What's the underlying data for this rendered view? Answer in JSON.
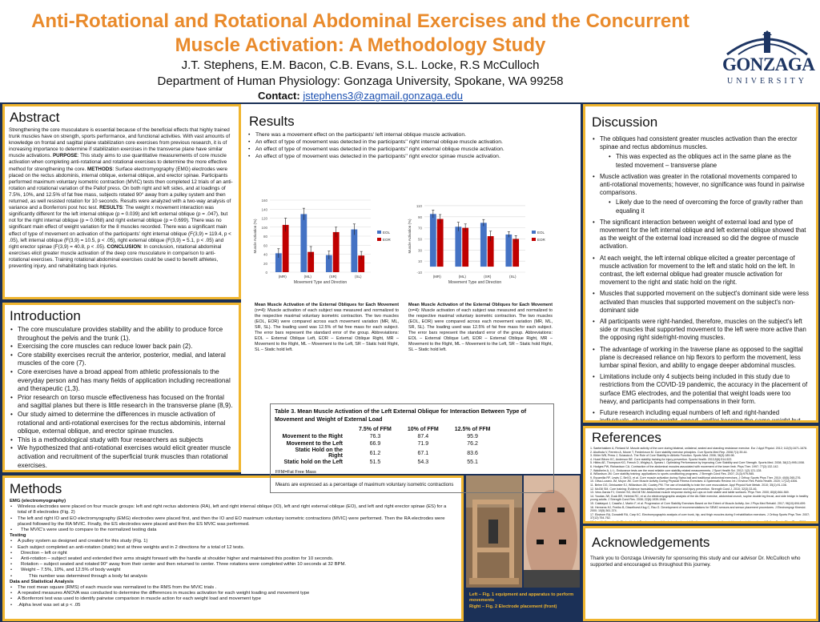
{
  "header": {
    "title": "Anti-Rotational and Rotational Abdominal Exercises and the Concurrent Muscle Activation: A Methodology Study",
    "authors": "J.T. Stephens, E.M. Bacon, C.B. Evans, S.L. Locke, R.S McCulloch",
    "department": "Department of Human Physiology: Gonzaga University, Spokane, WA 99258",
    "contact_label": "Contact:",
    "contact_email": "jstephens3@zagmail.gonzaga.edu",
    "logo_name": "GONZAGA",
    "logo_sub": "UNIVERSITY"
  },
  "abstract": {
    "heading": "Abstract",
    "p1": "Strengthening the core musculature is essential because of the beneficial effects that highly trained trunk muscles have on strength, sports performance, and functional activities. With vast amounts of knowledge on frontal and sagittal plane stabilization core exercises from previous research, it is of increasing importance to determine if stabilization exercises in the transverse plane have similar muscle activations.",
    "purpose_label": "PURPOSE",
    "p2": ": This study aims to use quantitative measurements of core muscle activation when completing anti-rotational and rotational exercises to determine the more effective method for strengthening the core.",
    "methods_label": "METHODS",
    "p3": ": Surface electromyography (EMG) electrodes were placed on the rectus abdominis, internal oblique, external oblique, and erector spinae. Participants performed maximum voluntary isometric contraction (MVIC) tests then completed 12 trials of an anti-rotation and rotational variation of the Pallof press. On both right and left sides, and at loadings of 7.5%, 10%, and 12.5% of fat free mass, subjects rotated 90° away from a pulley system and then returned, as well resisted rotation for 10 seconds. Results were analyzed with a two-way analysis of variance and a Bonferroni post hoc test.",
    "results_label": "RESULTS",
    "p4": ": The weight x movement interaction was significantly different for the left internal oblique (p = 0.039) and left external oblique (p = .047), but not for the right internal oblique (p = 0.068) and right external oblique (p = 0.699). There was no significant main effect of weight variation for the 8 muscles recorded. There was a significant main effect of type of movement on activation of the participants' right internal oblique (F(3,9) = 119.4, p < .05), left internal oblique (F(3,9) = 10.5, p < .05), right external oblique (F(3,9) = 5.1, p < .05) and right erector spinae (F(3,9) = 40.8, p < .05).",
    "conclusion_label": "CONCLUSION",
    "p5": ": In conclusion, rotational abdominal exercises elicit greater muscle activation of the deep core musculature in comparison to anti-rotational exercises. Training rotational abdominal exercises could be used to benefit athletes, preventing injury, and rehabilitating back injuries."
  },
  "introduction": {
    "heading": "Introduction",
    "items": [
      "The core musculature provides stability and the ability to produce force throughout the pelvis and the trunk (1).",
      "Exercising the core muscles can reduce lower back pain (2).",
      "Core stability exercises recruit the anterior, posterior, medial, and lateral muscles of the core (7).",
      "Core exercises have a broad appeal from athletic professionals to the everyday person and has many fields of application including recreational and therapeutic (1,3).",
      "Prior research on torso muscle effectiveness has focused on the frontal and sagittal planes but there is little research in the transverse plane (8,9).",
      "Our study aimed to determine the differences in muscle activation of rotational and anti-rotational exercises for the rectus abdominis, internal oblique, external oblique, and erector spinae muscles.",
      "This is a methodological study with four researchers as subjects",
      "We hypothesized that anti-rotational exercises would elicit greater muscle activation and recruitment of the superficial trunk muscles than rotational exercises."
    ]
  },
  "methods": {
    "heading": "Methods",
    "emg_heading": "EMG (electromyography)",
    "emg_items": [
      "Wireless electrodes were placed on four muscle groups: left and right rectus abdominis (RA), left and right internal oblique (IO), left and right external oblique (EO), and left and right erector spinae (ES) for a total of 8 electrodes (Fig. 2)",
      "The left and right IO and EO electromyography (EMG) electrodes were placed first, and then the IO and EO maximum voluntary isometric contractions (MVIC) were performed. Then the RA electrodes were placed followed by the RA MVIC. Finally, the ES electrodes were placed and then the ES MVIC was performed."
    ],
    "emg_sub": "The MVIC's were used to compare to the normalized testing data",
    "testing_heading": "Testing",
    "testing_items": [
      "A pulley system as designed and created for this study (Fig. 1)",
      "Each subject completed an anti-rotation (static) test at three weights and in 2 directions for a total of 12 tests."
    ],
    "testing_sub": [
      "Direction – left or right",
      "Anti-rotation – subject seated and extended their arms straight forward with the handle at shoulder higher and maintained this position for 10 seconds.",
      "Rotation – subject seated and rotated 90° away from their center and then returned to center. Three rotations were completed within 10 seconds at 32 BPM.",
      "Weight – 7.5%, 10%, and 12.5% of body weight"
    ],
    "testing_sub2": "This number was determined through a body fat analysis",
    "analysis_heading": "Data and Statistical Analysis",
    "analysis_items": [
      "The root mean square (RMS) of each muscle was normalized to the RMS from the MVIC trials .",
      "A repeated measures ANOVA was conducted to determine the differences in muscles activation for each weight loading and movement type",
      "A Bonferroni test was used to identify pairwise comparison in muscle action for each weight load and movement type",
      ".Alpha level was set at p < .05"
    ]
  },
  "photo": {
    "caption_line1": "Left – Fig. 1 equipment and apparatus to perform movements",
    "caption_line2": "Right – Fig. 2 Electrode placement (front)"
  },
  "results": {
    "heading": "Results",
    "items": [
      "There was a movement effect on the participants' left internal oblique muscle activation.",
      "An effect of type of movement was detected in the participants'' right internal oblique muscle activation.",
      "An effect of type of movement was detected in the participants'' right external oblique muscle activation.",
      "An effect of type of movement was detected in the participants'' right  erector spinae muscle activation."
    ],
    "caption_left_title": "Mean Muscle Activation of the External Obliques for Each Movement",
    "caption_left": "(n=4): Muscle activation of each subject was measured and normalized to the respective maximal voluntary isometric contraction. The two muscles (EOL, EOR) were compared across each movement variation (MR, ML, SR, SL). The loading used was 12.5% of fat free mass for each subject. The error bars represent the standard error of the group. Abbreviations: EOL – External Oblique Left, EOR – External Oblique Right, MR – Movement to the Right, ML – Movement to the Left, SR – Static hold Right, SL – Static hold left.",
    "caption_right_title": "Mean Muscle Activation of the External Obliques for Each Movement",
    "caption_right": "(n=4): Muscle activation of each subject was measured and normalized to the respective maximal voluntary isometric contraction. The two muscles (EOL, EOR) were compared across each movement variation (MR, ML, SR, SL). The loading used was 12.5% of fat free mass for each subject. The error bars represent the standard error of the group. Abbreviations: EOL – External Oblique Left, EOR – External Oblique Right, MR – Movement to the Right, ML – Movement to the Left, SR – Static hold Right, SL – Static hold left.",
    "table": {
      "title": "Table 3. Mean Muscle Activation of the Left External Oblique for Interaction Between Type of Movement and Weight of External Load",
      "columns": [
        "",
        "7.5% of FFM",
        "10% of FFM",
        "12.5% of FFM"
      ],
      "rows": [
        [
          "Movement to the Right",
          "76.3",
          "87.4",
          "95.9"
        ],
        [
          "Movement to the Left",
          "66.9",
          "71.9",
          "76.2"
        ],
        [
          "Static Hold on the Right",
          "61.2",
          "67.1",
          "83.6"
        ],
        [
          "Static hold on the Left",
          "51.5",
          "54.3",
          "55.1"
        ]
      ],
      "footnote": "FFM=Fat Free Mass",
      "note": "Means are expressed as a percentage of maximum voluntary isometric contractions"
    }
  },
  "discussion": {
    "heading": "Discussion",
    "items": [
      {
        "text": "The obliques had consistent greater muscles activation than the erector spinae and rectus abdominus muscles.",
        "sub": [
          "This was expected as the obliques act in the same plane as the tested movement – transverse plane"
        ]
      },
      {
        "text": "Muscle activation was greater in the rotational movements compared to anti-rotational movements; however, no significance was found in pairwise comparisons.",
        "sub": [
          "Likely due to the need of overcoming the force of gravity rather than equaling it"
        ]
      },
      {
        "text": "The significant interaction between weight of external load and type of movement for the left internal oblique and left external oblique showed that as the weight of the external load increased so did the degree of muscle activation.",
        "sub": []
      },
      {
        "text": "At each weight, the left internal oblique elicited a greater percentage of muscle activation for movement to the left and static hold on the left. In contrast, the left external oblique had greater muscle activation for movement to the right and static hold on the right.",
        "sub": []
      },
      {
        "text": "Muscles that supported movement on the subject's dominant side were less activated than muscles that supported movement on the subject's non-dominant side",
        "sub": []
      },
      {
        "text": "All participants were right-handed, therefore, muscles on the subject's left side or muscles that supported movement to the left were more active than the opposing right side/right-moving muscles.",
        "sub": []
      },
      {
        "text": "The advantage of working in the traverse plane as opposed to the sagittal plane is decreased reliance on hip flexors to perform the movement, less lumbar spinal flexion, and ability to engage deeper abdominal muscles.",
        "sub": []
      },
      {
        "text": "Limitations include only 4 subjects being included in this study due to restrictions from the COVID-19 pandemic, the accuracy in the placement of surface EMG electrodes, and the potential that weight loads were too heavy, and participants had compensations in their form.",
        "sub": []
      },
      {
        "text": "Future research including equal numbers of left and right-handed individuals, changing weight, speed, and/or keeping the same weight but manipulating the speeds the trials are done at.",
        "sub": []
      },
      {
        "text": "The findings of this methodology suggest reliable carry over to a full",
        "sub": []
      }
    ]
  },
  "references": {
    "heading": "References",
    "items": [
      "Saeterbakken A, Fimland M. Muscle activity of the core during bilateral, unilateral, seated and standing resistance exercise. Eur J Appl Physiol. 2012; 112(5):1671-1678.",
      "Akuthota V, Ferreiro A, Moore T, Fredericson M. Core stability exercise principles. Curr Sports Med Rep. 2008;7(1):39-44.",
      "Kibler WB, Press J, Sciascia A. The Role of Core Stability in Athletic Function. Sports Med. 2006; 36(3):189-98.",
      "Huxel Bliven KC, Anderson BE. Core stability training for injury prevention. Sports Health. 2013;5(6):514-522.",
      "Hibbs AE, Thompson KG, French D, Wrigley A, Spears I. Optimizing Performance by Improving Core Stability and Core Strength. Sports Med. 2008; 38(12):995-1008.",
      "Hodges PW, Richardson CA. Contraction of the abdominal muscles associated with movement of the lower limb. Phys Ther. 1997; 77(2):132-142.",
      "Waldhelm A, Li L. Endurance tests are the most reliable core stability related measurements. J Sport Health Sci. 2012; 1(2):121-128.",
      "Willardson JM. Core stability training: applications to sports conditioning programs. J Strength Cond Res. 2007; 21(3):979-985.",
      "Escamilla RF, Lewis C, Bell D, et al. Core muscle activation during Swiss ball and traditional abdominal exercises. J Orthop Sports Phys Ther. 2010; 40(5):265-276.",
      "Oliva-Lozano JM, Muyor JM. Core Muscle Activity During Physical Fitness Exercises: A Systematic Review. Int J Environ Res Public Health. 2020; 17(12):4306.",
      "Behm DG, Drinkwater EJ, Willardson JM, Cowley PM. The use of instability to train the core musculature. Appl Physiol Nutr Metab. 2010; 35(1):91-108.",
      "McGill SM. Core training: Evidence translating to better performance and injury prevention. Strength Cond J. 2010; 32(3):33-46.",
      "Vera-Garcia FJ, Grenier SG, McGill SM. Abdominal muscle response during curl-ups on both stable and labile surfaces. Phys Ther. 2000; 80(6):564-569.",
      "Youdas JW, Guck BR, Hebrink RC, et al. An electromyographic analysis of the Ab-Slide exercise, abdominal crunch, supine double leg thrust, and side bridge in healthy young adults. J Strength Cond Res. 2008; 22(6):1939-1946.",
      "Calatayud J, Casaña J, Martín F, et al. Progression of Core Stability Exercises Based on the Extent of Muscle Activity. Am J Phys Med Rehabil. 2017; 96(10):694-699.",
      "Hermens HJ, Freriks B, Disselhorst-Klug C, Rau G. Development of recommendations for SEMG sensors and sensor placement procedures. J Electromyogr Kinesiol. 2000; 10(5):361-374.",
      "Ekstrom RA, Donatelli RA, Carp KC. Electromyographic analysis of core trunk, hip, and thigh muscles during 9 rehabilitation exercises. J Orthop Sports Phys Ther. 2007; 37(12):754-762.",
      "Imai A, Kaneoka K, Okubo Y, et al. Trunk muscle activity during lumbar stabilization exercises on both a stable and unstable surface. J Orthop Sports Phys Ther. 2010; 40(6):369-375.",
      "Snarr RL, Esco MR. Electromyographical comparison of plank variations performed with and without instability devices. J Strength Cond Res. 2014; 28(11):3298-3305.",
      "Kavcic N, Grenier S, McGill SM. Determining the stabilizing role of individual torso muscles during rehabilitation exercises. Spine. 2004; 29(11):1254-1265.",
      "Okubo Y, Kaneoka K, Imai A, et al. Electromyographic analysis of transversus abdominis and lumbar multifidus using wire electrodes during lumbar stabilization exercises. J Orthop Sports Phys Ther. 2010; 40(11):743-750.",
      "Behm DG, Leonard AM, Young WB, Bonsey WA, MacKinnon SN. Trunk muscle electromyographic activity with unstable and unilateral exercises. J Strength Cond Res. 2005; 19(1):193-201.",
      "Bompa T, Buzzichelli C. Periodization: Theory and Methodology of Training. 6th ed. Human Kinetics; 2019."
    ]
  },
  "acknowledgements": {
    "heading": "Acknowledgements",
    "text": "Thank you to Gonzaga University for sponsoring this study and our advisor Dr. McCulloch who supported and encouraged us throughout this journey."
  },
  "chart_data": [
    {
      "type": "bar",
      "categories": [
        "(MR)",
        "(ML)",
        "(SR)",
        "(SL)"
      ],
      "series": [
        {
          "name": "EOL",
          "values": [
            42,
            129,
            38,
            95
          ]
        },
        {
          "name": "EOR",
          "values": [
            105,
            45,
            89,
            37
          ]
        }
      ],
      "errors": [
        [
          10,
          13,
          9,
          12
        ],
        [
          15,
          12,
          11,
          9
        ]
      ],
      "xlabel": "Movement Type and Direction",
      "ylabel": "Muscle Activation (%)",
      "ylim": [
        0,
        160
      ],
      "yticks": [
        0,
        20,
        40,
        60,
        80,
        100,
        120,
        140,
        160
      ],
      "colors": {
        "EOL": "#4472c4",
        "EOR": "#c00000"
      },
      "legend": "right"
    },
    {
      "type": "bar",
      "categories": [
        "(MR)",
        "(ML)",
        "(SR)",
        "(SL)"
      ],
      "series": [
        {
          "name": "EOL",
          "values": [
            95,
            72,
            79,
            58
          ]
        },
        {
          "name": "EOR",
          "values": [
            86,
            70,
            55,
            50
          ]
        }
      ],
      "errors": [
        [
          7,
          8,
          6,
          5
        ],
        [
          8,
          7,
          9,
          6
        ]
      ],
      "xlabel": "Movement Type and Direction",
      "ylabel": "Muscle Activation (%)",
      "ylim": [
        -10,
        120
      ],
      "yticks": [
        -10,
        10,
        30,
        50,
        70,
        90,
        110
      ],
      "colors": {
        "EOL": "#4472c4",
        "EOR": "#c00000"
      },
      "legend": "right"
    }
  ]
}
